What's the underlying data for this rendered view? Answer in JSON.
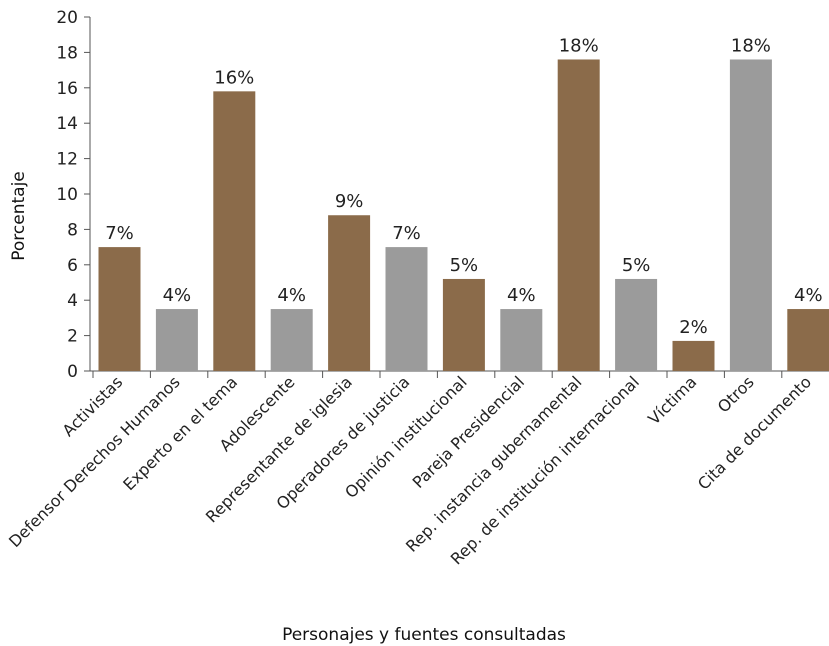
{
  "chart_data": {
    "type": "bar",
    "title": "",
    "xlabel": "Personajes y fuentes consultadas",
    "ylabel": "Porcentaje",
    "ylim": [
      0,
      20
    ],
    "yticks": [
      0,
      2,
      4,
      6,
      8,
      10,
      12,
      14,
      16,
      18,
      20
    ],
    "grid": false,
    "legend": "none",
    "categories": [
      "Activistas",
      "Defensor Derechos Humanos",
      "Experto en el tema",
      "Adolescente",
      "Representante de iglesia",
      "Operadores de justicia",
      "Opinión institucional",
      "Pareja Presidencial",
      "Rep. instancia gubernamental",
      "Rep. de institución internacional",
      "Víctima",
      "Otros",
      "Cita de documento"
    ],
    "values": [
      7.0,
      3.5,
      15.8,
      3.5,
      8.8,
      7.0,
      5.2,
      3.5,
      17.6,
      5.2,
      1.7,
      17.6,
      3.5
    ],
    "data_labels": [
      "7%",
      "4%",
      "16%",
      "4%",
      "9%",
      "7%",
      "5%",
      "4%",
      "18%",
      "5%",
      "2%",
      "18%",
      "4%"
    ],
    "bar_colors": [
      "#8B6B4A",
      "#9B9B9B",
      "#8B6B4A",
      "#9B9B9B",
      "#8B6B4A",
      "#9B9B9B",
      "#8B6B4A",
      "#9B9B9B",
      "#8B6B4A",
      "#9B9B9B",
      "#8B6B4A",
      "#9B9B9B",
      "#8B6B4A"
    ]
  }
}
